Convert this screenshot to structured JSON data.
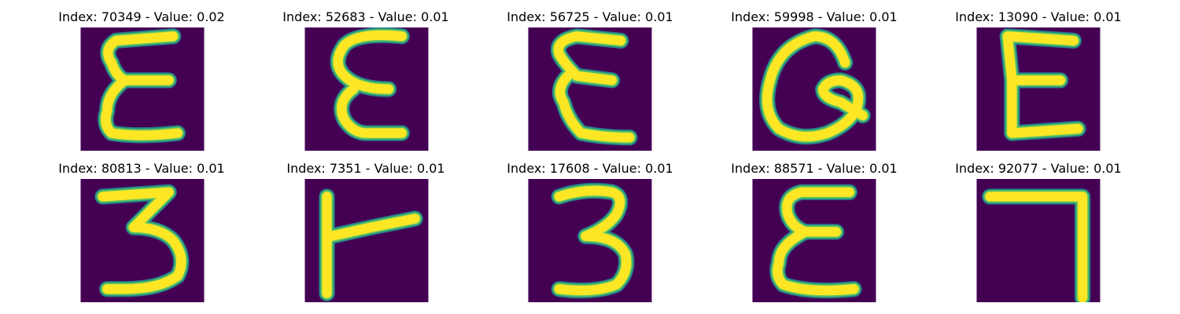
{
  "colors": {
    "background": "#440154",
    "stroke": "#fde725",
    "edge": "#21918c",
    "edge_mid": "#5ec962"
  },
  "panels": [
    {
      "title": "Index: 70349 - Value: 0.02",
      "glyph": "epsilon_a"
    },
    {
      "title": "Index: 52683 - Value: 0.01",
      "glyph": "epsilon_b"
    },
    {
      "title": "Index: 56725 - Value: 0.01",
      "glyph": "epsilon_c"
    },
    {
      "title": "Index: 59998 - Value: 0.01",
      "glyph": "loop_q"
    },
    {
      "title": "Index: 13090 - Value: 0.01",
      "glyph": "epsilon_d"
    },
    {
      "title": "Index: 80813 - Value: 0.01",
      "glyph": "three_a"
    },
    {
      "title": "Index: 7351 - Value: 0.01",
      "glyph": "t_rotated"
    },
    {
      "title": "Index: 17608 - Value: 0.01",
      "glyph": "three_b"
    },
    {
      "title": "Index: 88571 - Value: 0.01",
      "glyph": "epsilon_e"
    },
    {
      "title": "Index: 92077 - Value: 0.01",
      "glyph": "seven"
    }
  ]
}
